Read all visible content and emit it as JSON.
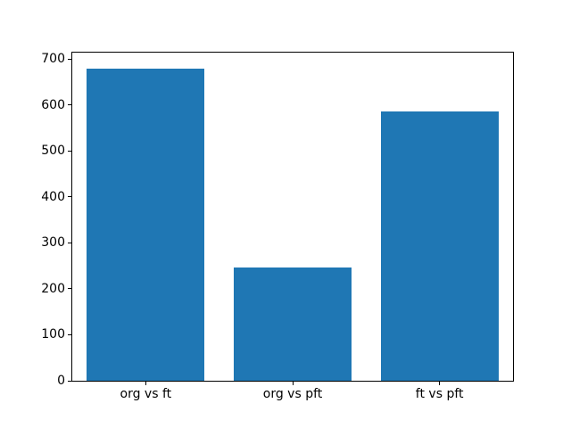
{
  "chart_data": {
    "type": "bar",
    "categories": [
      "org vs ft",
      "org vs pft",
      "ft vs pft"
    ],
    "values": [
      680,
      246,
      586
    ],
    "title": "",
    "xlabel": "",
    "ylabel": "",
    "ylim": [
      0,
      714
    ],
    "yticks": [
      0,
      100,
      200,
      300,
      400,
      500,
      600,
      700
    ],
    "bar_width_fraction": 0.8,
    "bar_color": "#1f77b4",
    "spine_color": "#000000",
    "background_color": "#ffffff",
    "grid": false,
    "legend_position": "none"
  }
}
